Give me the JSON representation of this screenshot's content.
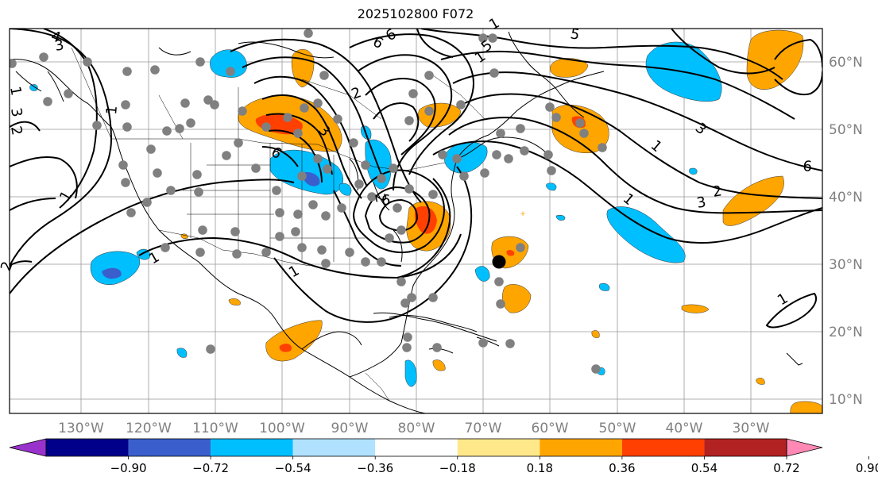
{
  "map": {
    "title": "2025102800 F072",
    "lon_labels": [
      "130°W",
      "120°W",
      "110°W",
      "100°W",
      "90°W",
      "80°W",
      "70°W",
      "60°W",
      "50°W",
      "40°W",
      "30°W"
    ],
    "lat_labels": [
      "60°N",
      "50°N",
      "40°N",
      "30°N",
      "20°N",
      "10°N"
    ],
    "contour_labels": [
      "4",
      "3",
      "1",
      "3",
      "2",
      "1",
      "1",
      "2",
      "1",
      "1",
      "2",
      "3",
      "6",
      "6",
      "5",
      "6",
      "1",
      "3",
      "6",
      "2",
      "3",
      "1",
      "5",
      "1",
      "2",
      "6",
      "1",
      "1"
    ],
    "colors": {
      "land_outline": "#000000",
      "grid": "#999999",
      "label_gray": "#808080",
      "station_marker": "#808080",
      "center_marker": "#000000"
    }
  },
  "colorbar": {
    "tick_labels": [
      "−0.90",
      "−0.72",
      "−0.54",
      "−0.36",
      "−0.18",
      "0.18",
      "0.36",
      "0.54",
      "0.72",
      "0.90"
    ],
    "bins": [
      {
        "color": "#9932cc"
      },
      {
        "color": "#00008b"
      },
      {
        "color": "#3a5fcd"
      },
      {
        "color": "#00bfff"
      },
      {
        "color": "#b0e2ff"
      },
      {
        "color": "#ffffff"
      },
      {
        "color": "#ffe88a"
      },
      {
        "color": "#ffa500"
      },
      {
        "color": "#ff4000"
      },
      {
        "color": "#b22222"
      },
      {
        "color": "#ff88b4"
      }
    ]
  }
}
